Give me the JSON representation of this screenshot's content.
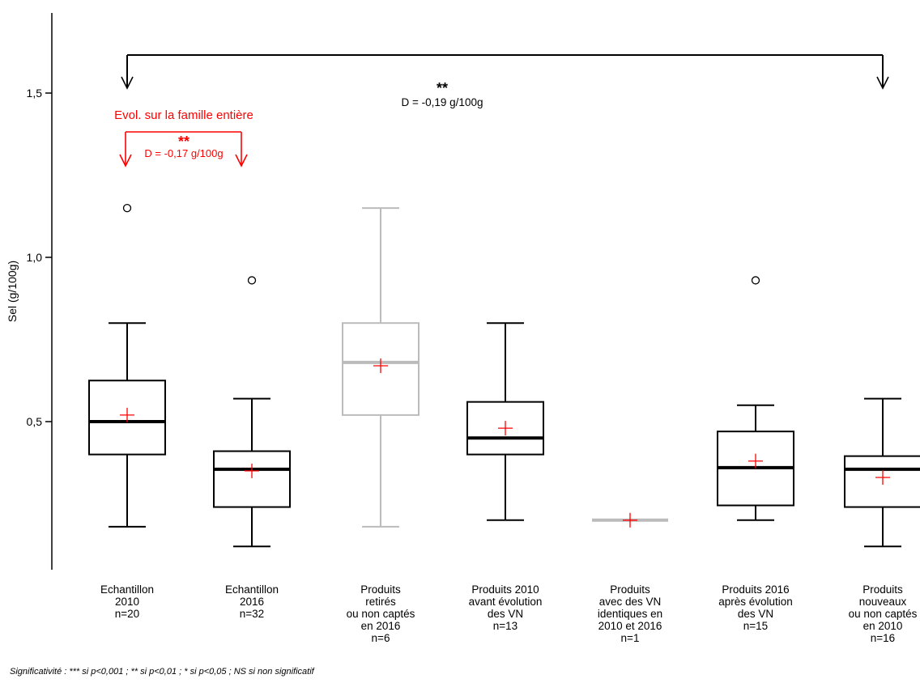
{
  "chart_data": {
    "type": "box",
    "ylabel": "Sel (g/100g)",
    "ylim": [
      0.0,
      1.7
    ],
    "yticks": [
      0.5,
      1.0,
      1.5
    ],
    "ytick_labels": [
      "0,5",
      "1,0",
      "1,5"
    ],
    "groups": [
      {
        "label_lines": [
          "Echantillon",
          "2010",
          "n=20"
        ],
        "color": "#000000",
        "whisker_low": 0.18,
        "q1": 0.4,
        "median": 0.5,
        "q3": 0.625,
        "whisker_high": 0.8,
        "mean": 0.52,
        "outliers": [
          1.15
        ]
      },
      {
        "label_lines": [
          "Echantillon",
          "2016",
          "n=32"
        ],
        "color": "#000000",
        "whisker_low": 0.12,
        "q1": 0.24,
        "median": 0.355,
        "q3": 0.41,
        "whisker_high": 0.57,
        "mean": 0.35,
        "outliers": [
          0.93
        ]
      },
      {
        "label_lines": [
          "Produits",
          "retirés",
          "ou non captés",
          "en 2016",
          "n=6"
        ],
        "color": "#bbbbbb",
        "whisker_low": 0.18,
        "q1": 0.52,
        "median": 0.68,
        "q3": 0.8,
        "whisker_high": 1.15,
        "mean": 0.67,
        "outliers": []
      },
      {
        "label_lines": [
          "Produits 2010",
          "avant évolution",
          "des VN",
          "n=13"
        ],
        "color": "#000000",
        "whisker_low": 0.2,
        "q1": 0.4,
        "median": 0.45,
        "q3": 0.56,
        "whisker_high": 0.8,
        "mean": 0.48,
        "outliers": []
      },
      {
        "label_lines": [
          "Produits",
          "avec des VN",
          "identiques en",
          "2010 et 2016",
          "n=1"
        ],
        "color": "#bbbbbb",
        "whisker_low": 0.2,
        "q1": 0.2,
        "median": 0.2,
        "q3": 0.2,
        "whisker_high": 0.2,
        "mean": 0.2,
        "outliers": []
      },
      {
        "label_lines": [
          "Produits 2016",
          "après évolution",
          "des VN",
          "n=15"
        ],
        "color": "#000000",
        "whisker_low": 0.2,
        "q1": 0.245,
        "median": 0.36,
        "q3": 0.47,
        "whisker_high": 0.55,
        "mean": 0.38,
        "outliers": [
          0.93
        ]
      },
      {
        "label_lines": [
          "Produits",
          "nouveaux",
          "ou non captés",
          "en 2010",
          "n=16"
        ],
        "color": "#000000",
        "whisker_low": 0.12,
        "q1": 0.24,
        "median": 0.355,
        "q3": 0.395,
        "whisker_high": 0.57,
        "mean": 0.33,
        "outliers": []
      }
    ],
    "annotations": [
      {
        "color": "#ff0000",
        "title": "Evol. sur la famille entière",
        "stars": "**",
        "text": "D = -0,17 g/100g",
        "from_group": 0,
        "to_group": 1
      },
      {
        "color": "#000000",
        "title": "",
        "stars": "**",
        "text": "D = -0,19 g/100g",
        "from_group": 0,
        "to_group": 6
      }
    ],
    "mean_marker_color": "#ff0000"
  },
  "footnote": "Significativité : *** si p<0,001 ; ** si p<0,01 ; * si p<0,05 ; NS si non significatif"
}
